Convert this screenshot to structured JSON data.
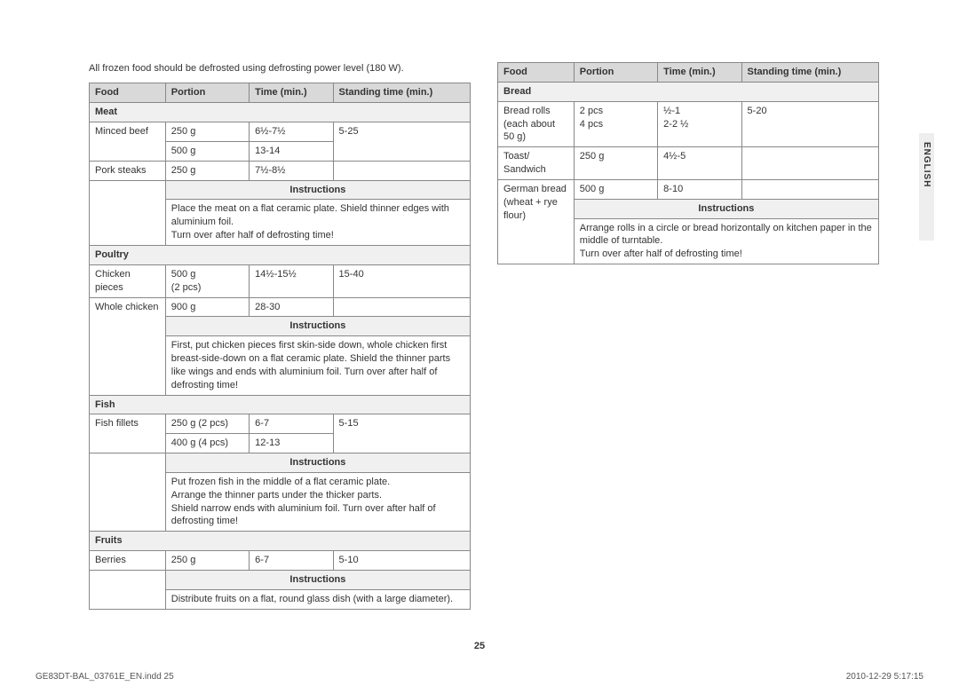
{
  "intro": "All frozen food should be defrosted using defrosting power level (180 W).",
  "headers": {
    "food": "Food",
    "portion": "Portion",
    "time": "Time (min.)",
    "standing": "Standing time (min.)"
  },
  "instr_label": "Instructions",
  "left": {
    "cat_meat": "Meat",
    "meat_r1": {
      "food": "Minced beef",
      "portion": "250 g",
      "time": "6½-7½",
      "standing": "5-25"
    },
    "meat_r2": {
      "portion": "500 g",
      "time": "13-14"
    },
    "meat_r3": {
      "food": "Pork steaks",
      "portion": "250 g",
      "time": "7½-8½"
    },
    "meat_instr": "Place the meat on a flat ceramic plate. Shield thinner edges with aluminium foil.\nTurn over after half of defrosting time!",
    "cat_poultry": "Poultry",
    "poultry_r1": {
      "food": "Chicken pieces",
      "portion": "500 g\n(2 pcs)",
      "time": "14½-15½",
      "standing": "15-40"
    },
    "poultry_r2": {
      "food": "Whole chicken",
      "portion": "900 g",
      "time": "28-30"
    },
    "poultry_instr": "First, put chicken pieces first skin-side down, whole chicken first breast-side-down on a flat ceramic plate. Shield the thinner parts like wings and ends with aluminium foil. Turn over after half of defrosting time!",
    "cat_fish": "Fish",
    "fish_r1": {
      "food": "Fish fillets",
      "portion": "250 g (2 pcs)",
      "time": "6-7",
      "standing": "5-15"
    },
    "fish_r2": {
      "portion": "400 g (4 pcs)",
      "time": "12-13"
    },
    "fish_instr": "Put frozen fish in the middle of a flat ceramic plate.\nArrange the thinner parts under the thicker parts.\nShield narrow ends with aluminium foil. Turn over after half of defrosting time!",
    "cat_fruits": "Fruits",
    "fruits_r1": {
      "food": "Berries",
      "portion": "250 g",
      "time": "6-7",
      "standing": "5-10"
    },
    "fruits_instr": "Distribute fruits on a flat, round glass dish (with a large diameter)."
  },
  "right": {
    "cat_bread": "Bread",
    "bread_r1": {
      "food": "Bread rolls (each about 50 g)",
      "portion": "2 pcs\n4 pcs",
      "time": "½-1\n2-2 ½",
      "standing": "5-20"
    },
    "bread_r2": {
      "food": "Toast/ Sandwich",
      "portion": "250 g",
      "time": "4½-5"
    },
    "bread_r3": {
      "food": "German bread (wheat + rye flour)",
      "portion": "500 g",
      "time": "8-10"
    },
    "bread_instr": "Arrange rolls in a circle or bread horizontally on kitchen paper in the middle of turntable.\nTurn over after half of defrosting time!"
  },
  "side": "ENGLISH",
  "pagenum": "25",
  "footer_left": "GE83DT-BAL_03761E_EN.indd   25",
  "footer_right": "2010-12-29     5:17:15"
}
